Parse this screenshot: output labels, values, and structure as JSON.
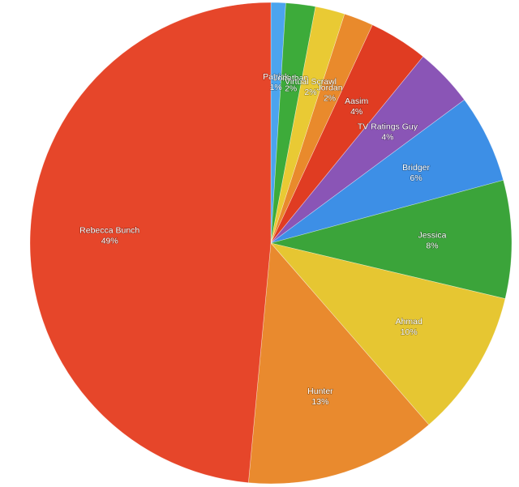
{
  "chart_data": {
    "type": "pie",
    "categories": [
      "Patrick",
      "Jonathan",
      "Virtual Scrawl",
      "Jordan",
      "Aasim",
      "TV Ratings Guy",
      "Bridger",
      "Jessica",
      "Ahmad",
      "Hunter",
      "Rebecca Bunch"
    ],
    "values": [
      1,
      2,
      2,
      2,
      4,
      4,
      6,
      8,
      10,
      13,
      49
    ],
    "value_labels": [
      "1%",
      "2%",
      "2%",
      "2%",
      "4%",
      "4%",
      "6%",
      "8%",
      "10%",
      "13%",
      "49%"
    ],
    "colors": [
      "#4ba4ee",
      "#3dab3a",
      "#e9ca34",
      "#e98a2c",
      "#e03c22",
      "#8a55b6",
      "#3d8fe6",
      "#3ba43a",
      "#e6c632",
      "#e98a2e",
      "#e6462a"
    ]
  }
}
